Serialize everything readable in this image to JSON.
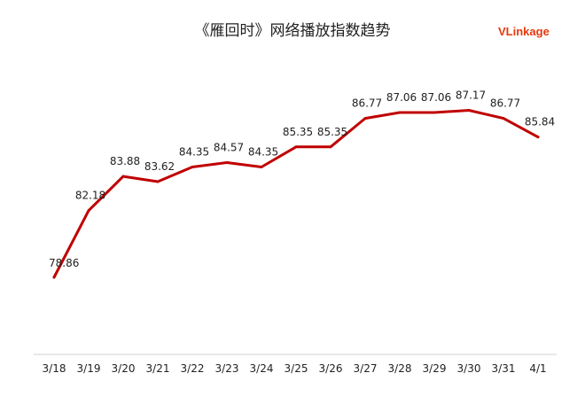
{
  "title": "《雁回时》网络播放指数趋势",
  "brand": {
    "prefix": "V",
    "rest": "Linkage",
    "color": "#e8380d"
  },
  "chart_data": {
    "type": "line",
    "title": "《雁回时》网络播放指数趋势",
    "categories": [
      "3/18",
      "3/19",
      "3/20",
      "3/21",
      "3/22",
      "3/23",
      "3/24",
      "3/25",
      "3/26",
      "3/27",
      "3/28",
      "3/29",
      "3/30",
      "3/31",
      "4/1"
    ],
    "series": [
      {
        "values": [
          78.86,
          82.18,
          83.88,
          83.62,
          84.35,
          84.57,
          84.35,
          85.35,
          85.35,
          86.77,
          87.06,
          87.06,
          87.17,
          86.77,
          85.84
        ]
      }
    ],
    "line_color": "#c00000",
    "ylim": [
      76,
      88
    ],
    "grid": false,
    "legend": "none",
    "xlabel": "",
    "ylabel": ""
  }
}
